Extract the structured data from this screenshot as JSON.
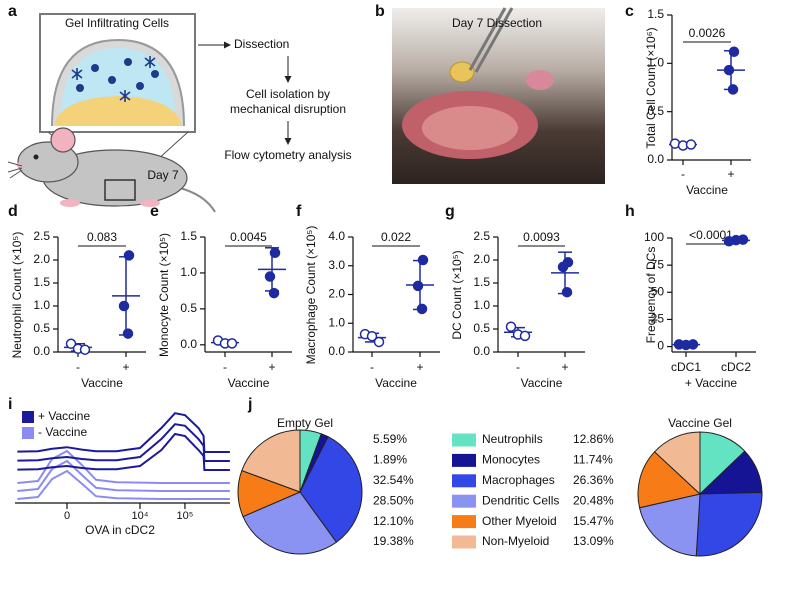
{
  "figure": {
    "a": {
      "label": "a",
      "box_title": "Gel Infiltrating Cells",
      "day": "Day 7",
      "steps": [
        "Dissection",
        "Cell isolation by",
        "mechanical disruption",
        "Flow cytometry analysis"
      ]
    },
    "b": {
      "label": "b",
      "title": "Day 7 Dissection"
    }
  },
  "chart_data": [
    {
      "type": "dotplot",
      "label": "c",
      "ylabel": "Total Cell Count (×10⁶)",
      "xlabel": "Vaccine",
      "categories": [
        "-",
        "+"
      ],
      "markers": [
        "open",
        "filled"
      ],
      "color": "#1e2ba0",
      "values": [
        [
          0.17,
          0.15,
          0.16
        ],
        [
          1.12,
          0.93,
          0.73
        ]
      ],
      "means": [
        0.16,
        0.93
      ],
      "errors": [
        0.01,
        0.2
      ],
      "annotation": "0.0026",
      "ylim": [
        0,
        1.5
      ],
      "yticks": [
        {
          "value": 0,
          "label": "0.0"
        },
        0.5,
        {
          "value": 1,
          "label": "1.0"
        },
        1.5
      ]
    },
    {
      "type": "dotplot",
      "label": "d",
      "ylabel": "Neutrophil Count (×10⁵)",
      "xlabel": "Vaccine",
      "categories": [
        "-",
        "+"
      ],
      "markers": [
        "open",
        "filled"
      ],
      "color": "#1e2ba0",
      "values": [
        [
          0.18,
          0.07,
          0.05
        ],
        [
          2.1,
          1.0,
          0.4
        ]
      ],
      "means": [
        0.1,
        1.22
      ],
      "errors": [
        0.08,
        0.85
      ],
      "annotation": "0.083",
      "ylim": [
        0,
        2.5
      ],
      "yticks": [
        {
          "value": 0,
          "label": "0.0"
        },
        0.5,
        {
          "value": 1,
          "label": "1.0"
        },
        1.5,
        {
          "value": 2,
          "label": "2.0"
        },
        2.5
      ]
    },
    {
      "type": "dotplot",
      "label": "e",
      "ylabel": "Monocyte Count (×10⁵)",
      "xlabel": "Vaccine",
      "categories": [
        "-",
        "+"
      ],
      "markers": [
        "open",
        "filled"
      ],
      "color": "#1e2ba0",
      "values": [
        [
          0.06,
          0.02,
          0.02
        ],
        [
          1.28,
          0.95,
          0.72
        ]
      ],
      "means": [
        0.03,
        1.05
      ],
      "errors": [
        0.03,
        0.3
      ],
      "annotation": "0.0045",
      "ylim": [
        -0.1,
        1.5
      ],
      "yticks": [
        {
          "value": 0,
          "label": "0.0"
        },
        0.5,
        {
          "value": 1,
          "label": "1.0"
        },
        1.5
      ]
    },
    {
      "type": "dotplot",
      "label": "f",
      "ylabel": "Macrophage Count (×10⁵)",
      "xlabel": "Vaccine",
      "categories": [
        "-",
        "+"
      ],
      "markers": [
        "open",
        "filled"
      ],
      "color": "#1e2ba0",
      "values": [
        [
          0.62,
          0.55,
          0.35
        ],
        [
          3.2,
          2.3,
          1.5
        ]
      ],
      "means": [
        0.5,
        2.33
      ],
      "errors": [
        0.15,
        0.85
      ],
      "annotation": "0.022",
      "ylim": [
        0,
        4
      ],
      "yticks": [
        {
          "value": 0,
          "label": "0.0"
        },
        {
          "value": 1,
          "label": "1.0"
        },
        {
          "value": 2,
          "label": "2.0"
        },
        {
          "value": 3,
          "label": "3.0"
        },
        {
          "value": 4,
          "label": "4.0"
        }
      ]
    },
    {
      "type": "dotplot",
      "label": "g",
      "ylabel": "DC Count (×10⁵)",
      "xlabel": "Vaccine",
      "categories": [
        "-",
        "+"
      ],
      "markers": [
        "open",
        "filled"
      ],
      "color": "#1e2ba0",
      "values": [
        [
          0.55,
          0.38,
          0.35
        ],
        [
          1.95,
          1.85,
          1.3
        ]
      ],
      "means": [
        0.43,
        1.72
      ],
      "errors": [
        0.1,
        0.45
      ],
      "annotation": "0.0093",
      "ylim": [
        0,
        2.5
      ],
      "yticks": [
        {
          "value": 0,
          "label": "0.0"
        },
        0.5,
        {
          "value": 1,
          "label": "1.0"
        },
        1.5,
        {
          "value": 2,
          "label": "2.0"
        },
        2.5
      ]
    },
    {
      "type": "dotplot",
      "label": "h",
      "ylabel": "Frequency of DCs",
      "xlabel": "+ Vaccine",
      "categories": [
        "cDC1",
        "cDC2"
      ],
      "markers": [
        "filled",
        "filled"
      ],
      "color": "#1e2ba0",
      "values": [
        [
          2,
          1.5,
          2
        ],
        [
          97,
          98,
          98.5
        ]
      ],
      "means": [
        1.8,
        97.8
      ],
      "errors": [
        0.3,
        0.8
      ],
      "annotation": "<0.0001",
      "ylim": [
        -5,
        100
      ],
      "yticks": [
        0,
        25,
        50,
        75,
        100
      ]
    },
    {
      "type": "density",
      "label": "i",
      "xlabel": "OVA in cDC2",
      "xscale": "biexponential",
      "xlim": [
        -3400,
        1000000
      ],
      "xticks": [
        0,
        {
          "value": 10000,
          "label": "10⁴"
        },
        {
          "value": 100000,
          "label": "10⁵"
        }
      ],
      "x": [
        -3000,
        -1000,
        -400,
        0,
        400,
        1000,
        3000,
        10000,
        30000,
        60000,
        100000,
        200000,
        260000,
        270000,
        1000000
      ],
      "series": [
        {
          "name": "+ Vaccine",
          "color": "#1a1a9a",
          "replicates": [
            [
              0.01,
              0.02,
              0.08,
              0.12,
              0.06,
              0.02,
              0.02,
              0.1,
              0.6,
              0.97,
              0.92,
              0.6,
              0.4,
              0,
              0
            ],
            [
              0.01,
              0.02,
              0.07,
              0.1,
              0.05,
              0.02,
              0.02,
              0.1,
              0.55,
              0.92,
              0.88,
              0.55,
              0.38,
              0,
              0
            ],
            [
              0.01,
              0.02,
              0.07,
              0.1,
              0.05,
              0.02,
              0.02,
              0.1,
              0.5,
              0.9,
              0.85,
              0.5,
              0.35,
              0,
              0
            ]
          ]
        },
        {
          "name": "- Vaccine",
          "color": "#8c8cf0",
          "replicates": [
            [
              0,
              0.05,
              0.6,
              0.8,
              0.45,
              0.08,
              0.02,
              0.01,
              0,
              0,
              0,
              0,
              0,
              0,
              0
            ],
            [
              0,
              0.05,
              0.55,
              0.75,
              0.4,
              0.08,
              0.02,
              0.01,
              0,
              0,
              0,
              0,
              0,
              0,
              0
            ],
            [
              0,
              0.05,
              0.5,
              0.7,
              0.38,
              0.07,
              0.02,
              0.01,
              0,
              0,
              0,
              0,
              0,
              0,
              0
            ]
          ]
        }
      ]
    },
    {
      "type": "pie",
      "label": "j",
      "categories": [
        "Neutrophils",
        "Monocytes",
        "Macrophages",
        "Dendritic Cells",
        "Other Myeloid",
        "Non-Myeloid"
      ],
      "colors": [
        "#63e3c2",
        "#141494",
        "#3346e6",
        "#8b93f2",
        "#f77c17",
        "#f2b995"
      ],
      "series": [
        {
          "name": "Empty Gel",
          "values": [
            5.59,
            1.89,
            32.54,
            28.5,
            12.1,
            19.38
          ],
          "value_labels": [
            "5.59%",
            "1.89%",
            "32.54%",
            "28.50%",
            "12.10%",
            "19.38%"
          ]
        },
        {
          "name": "Vaccine Gel",
          "values": [
            12.86,
            11.74,
            26.36,
            20.48,
            15.47,
            13.09
          ],
          "value_labels": [
            "12.86%",
            "11.74%",
            "26.36%",
            "20.48%",
            "15.47%",
            "13.09%"
          ]
        }
      ]
    }
  ]
}
